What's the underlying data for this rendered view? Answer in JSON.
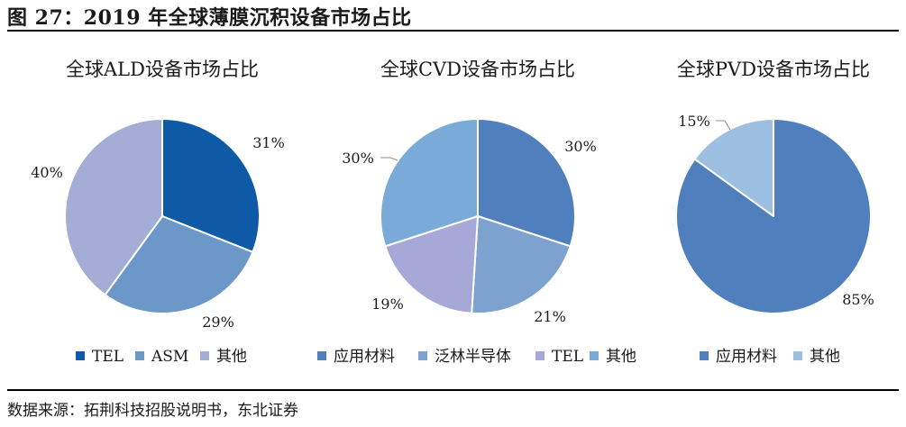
{
  "figure": {
    "title": "图 27：2019 年全球薄膜沉积设备市场占比",
    "source": "数据来源：拓荆科技招股说明书，东北证券"
  },
  "chart_data": [
    {
      "type": "pie",
      "title": "全球ALD设备市场占比",
      "slices": [
        {
          "label": "TEL",
          "value": 31,
          "display": "31%",
          "color": "#0e5aa7"
        },
        {
          "label": "ASM",
          "value": 29,
          "display": "29%",
          "color": "#6b97c9"
        },
        {
          "label": "其他",
          "value": 40,
          "display": "40%",
          "color": "#a3add6"
        }
      ],
      "legend_position": "bottom"
    },
    {
      "type": "pie",
      "title": "全球CVD设备市场占比",
      "slices": [
        {
          "label": "应用材料",
          "value": 30,
          "display": "30%",
          "color": "#4f80bd"
        },
        {
          "label": "泛林半导体",
          "value": 21,
          "display": "21%",
          "color": "#7ea2cf"
        },
        {
          "label": "TEL",
          "value": 19,
          "display": "19%",
          "color": "#a6a8d8"
        },
        {
          "label": "其他",
          "value": 30,
          "display": "30%",
          "color": "#7aabd8"
        }
      ],
      "legend_position": "bottom"
    },
    {
      "type": "pie",
      "title": "全球PVD设备市场占比",
      "slices": [
        {
          "label": "应用材料",
          "value": 85,
          "display": "85%",
          "color": "#4f80bd"
        },
        {
          "label": "其他",
          "value": 15,
          "display": "15%",
          "color": "#9dc0e2"
        }
      ],
      "legend_position": "bottom"
    }
  ]
}
